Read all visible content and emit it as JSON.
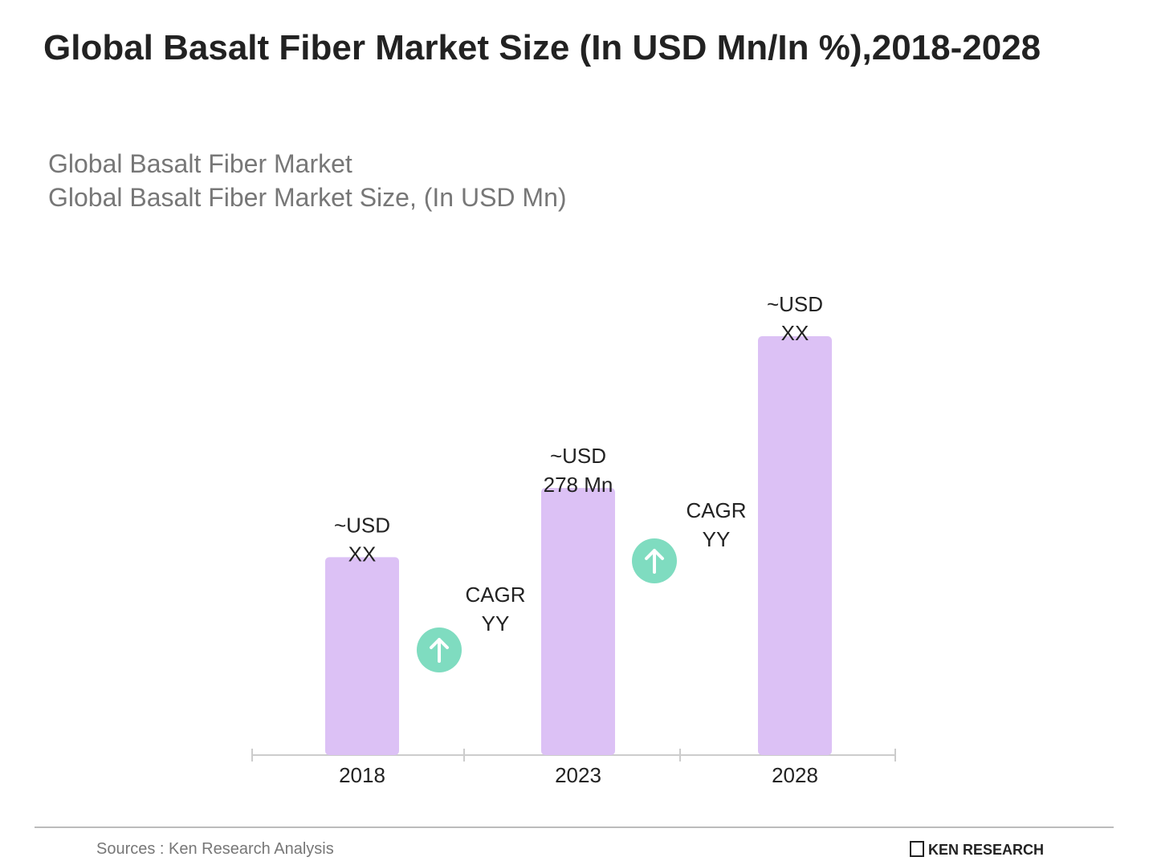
{
  "chart_data": {
    "type": "bar",
    "title": "Global Basalt Fiber Market Size (In USD Mn/In %),2018-2028",
    "subtitle": [
      "Global Basalt Fiber Market",
      "Global Basalt Fiber Market Size, (In USD Mn)"
    ],
    "categories": [
      "2018",
      "2023",
      "2028"
    ],
    "values": [
      206,
      278,
      436
    ],
    "value_labels": [
      "~USD XX",
      "~USD 278 Mn",
      "~USD XX"
    ],
    "color": "#dcc1f5",
    "annotations": [
      "CAGR YY",
      "CAGR YY"
    ],
    "source": "Sources : Ken Research Analysis",
    "brand": "KEN RESEARCH"
  }
}
